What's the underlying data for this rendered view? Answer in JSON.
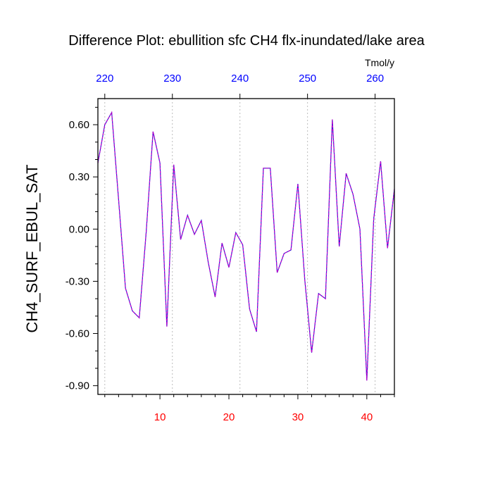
{
  "chart_data": {
    "type": "line",
    "title": "Difference Plot: ebullition sfc CH4 flx-inundated/lake area",
    "ylabel": "CH4_SURF_EBUL_SAT",
    "top_axis_unit": "Tmol/y",
    "x": [
      1,
      2,
      3,
      4,
      5,
      6,
      7,
      8,
      9,
      10,
      11,
      12,
      13,
      14,
      15,
      16,
      17,
      18,
      19,
      20,
      21,
      22,
      23,
      24,
      25,
      26,
      27,
      28,
      29,
      30,
      31,
      32,
      33,
      34,
      35,
      36,
      37,
      38,
      39,
      40,
      41,
      42,
      43,
      44
    ],
    "series": [
      {
        "color": "#4b00c8",
        "values": [
          0.38,
          0.6,
          0.67,
          0.17,
          -0.34,
          -0.47,
          -0.51,
          -0.02,
          0.56,
          0.38,
          -0.56,
          0.37,
          -0.06,
          0.08,
          -0.03,
          0.05,
          -0.19,
          -0.39,
          -0.08,
          -0.22,
          -0.02,
          -0.09,
          -0.46,
          -0.59,
          0.35,
          0.35,
          -0.25,
          -0.14,
          -0.12,
          0.26,
          -0.29,
          -0.71,
          -0.37,
          -0.4,
          0.63,
          -0.1,
          0.32,
          0.2,
          0.0,
          -0.87,
          0.06,
          0.39,
          -0.11,
          0.23
        ]
      }
    ],
    "xlim": [
      1,
      44
    ],
    "ylim": [
      -0.95,
      0.75
    ],
    "bottom_ticks": [
      10,
      20,
      30,
      40
    ],
    "bottom_tick_color": "#ff0000",
    "top_tick_labels": [
      "220",
      "230",
      "240",
      "250",
      "260"
    ],
    "top_ticks_at_x": [
      2.0,
      11.8,
      21.6,
      31.4,
      41.2
    ],
    "top_tick_color": "#0000ff",
    "yticks": [
      0.6,
      0.3,
      0.0,
      -0.3,
      -0.6,
      -0.9
    ],
    "ytick_labels": [
      "0.60",
      "0.30",
      "0.00",
      "-0.30",
      "-0.60",
      "-0.90"
    ],
    "grid": "dotted vertical lines at top-axis ticks",
    "legend": "none"
  }
}
